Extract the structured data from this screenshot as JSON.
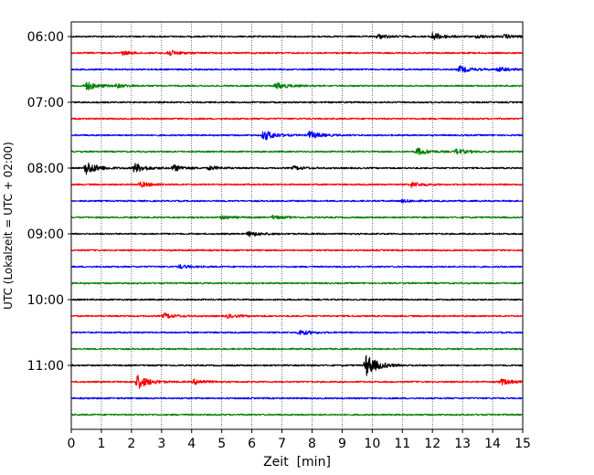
{
  "chart_data": {
    "type": "line",
    "title": "",
    "xlabel": "Zeit  [min]",
    "ylabel": "UTC (Lokalzeit = UTC + 02:00)",
    "xlim": [
      0,
      15
    ],
    "x_ticks": [
      "0",
      "1",
      "2",
      "3",
      "4",
      "5",
      "6",
      "7",
      "8",
      "9",
      "10",
      "11",
      "12",
      "13",
      "14",
      "15"
    ],
    "y_ticks": [
      "06:00",
      "07:00",
      "08:00",
      "09:00",
      "10:00",
      "11:00"
    ],
    "grid_x": true,
    "trace_colors": [
      "#000000",
      "#ff0000",
      "#0000ff",
      "#008000"
    ],
    "traces": [
      {
        "start": "06:00",
        "events": [
          {
            "t": 10.2,
            "amp": 0.25
          },
          {
            "t": 12.0,
            "amp": 0.45
          },
          {
            "t": 13.5,
            "amp": 0.2
          },
          {
            "t": 14.4,
            "amp": 0.2
          }
        ]
      },
      {
        "start": "06:15",
        "events": [
          {
            "t": 1.7,
            "amp": 0.2
          },
          {
            "t": 3.2,
            "amp": 0.35
          }
        ]
      },
      {
        "start": "06:30",
        "events": [
          {
            "t": 12.9,
            "amp": 0.4
          },
          {
            "t": 14.2,
            "amp": 0.25
          }
        ]
      },
      {
        "start": "06:45",
        "events": [
          {
            "t": 0.5,
            "amp": 0.5
          },
          {
            "t": 1.5,
            "amp": 0.2
          },
          {
            "t": 6.8,
            "amp": 0.4
          }
        ]
      },
      {
        "start": "07:00",
        "events": []
      },
      {
        "start": "07:15",
        "events": []
      },
      {
        "start": "07:30",
        "events": [
          {
            "t": 6.4,
            "amp": 0.6
          },
          {
            "t": 7.9,
            "amp": 0.45
          }
        ]
      },
      {
        "start": "07:45",
        "events": [
          {
            "t": 11.5,
            "amp": 0.4
          },
          {
            "t": 12.8,
            "amp": 0.3
          }
        ]
      },
      {
        "start": "08:00",
        "events": [
          {
            "t": 0.5,
            "amp": 0.8
          },
          {
            "t": 2.1,
            "amp": 0.55
          },
          {
            "t": 3.4,
            "amp": 0.35
          },
          {
            "t": 4.6,
            "amp": 0.2
          },
          {
            "t": 7.4,
            "amp": 0.2
          }
        ]
      },
      {
        "start": "08:15",
        "events": [
          {
            "t": 2.3,
            "amp": 0.3
          },
          {
            "t": 11.3,
            "amp": 0.3
          }
        ]
      },
      {
        "start": "08:30",
        "events": [
          {
            "t": 11.0,
            "amp": 0.15
          }
        ]
      },
      {
        "start": "08:45",
        "events": [
          {
            "t": 5.0,
            "amp": 0.2
          },
          {
            "t": 6.7,
            "amp": 0.2
          }
        ]
      },
      {
        "start": "09:00",
        "events": [
          {
            "t": 5.9,
            "amp": 0.3
          }
        ]
      },
      {
        "start": "09:15",
        "events": []
      },
      {
        "start": "09:30",
        "events": [
          {
            "t": 3.6,
            "amp": 0.2
          }
        ]
      },
      {
        "start": "09:45",
        "events": []
      },
      {
        "start": "10:00",
        "events": []
      },
      {
        "start": "10:15",
        "events": [
          {
            "t": 3.1,
            "amp": 0.3
          },
          {
            "t": 5.2,
            "amp": 0.2
          }
        ]
      },
      {
        "start": "10:30",
        "events": [
          {
            "t": 7.6,
            "amp": 0.3
          }
        ]
      },
      {
        "start": "10:45",
        "events": []
      },
      {
        "start": "11:00",
        "events": [
          {
            "t": 9.8,
            "amp": 1.3
          }
        ]
      },
      {
        "start": "11:15",
        "events": [
          {
            "t": 2.2,
            "amp": 0.85
          },
          {
            "t": 4.1,
            "amp": 0.3
          },
          {
            "t": 14.3,
            "amp": 0.35
          }
        ]
      },
      {
        "start": "11:30",
        "events": []
      },
      {
        "start": "11:45",
        "events": []
      }
    ]
  }
}
